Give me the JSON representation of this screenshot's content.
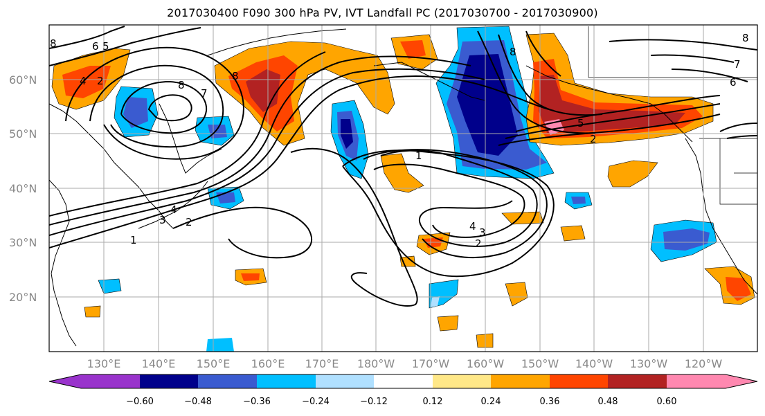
{
  "title": "2017030400 F090 300 hPa PV, IVT Landfall PC (2017030700 - 2017030900)",
  "map": {
    "lat_labels": [
      "60°N",
      "50°N",
      "40°N",
      "30°N",
      "20°N"
    ],
    "lon_labels": [
      "130°E",
      "140°E",
      "150°E",
      "160°E",
      "170°E",
      "180°W",
      "170°W",
      "160°W",
      "150°W",
      "140°W",
      "130°W",
      "120°W"
    ],
    "contour_labels": [
      "1",
      "2",
      "3",
      "4",
      "5",
      "6",
      "7",
      "8"
    ]
  },
  "colorbar": {
    "ticks": [
      "−0.60",
      "−0.48",
      "−0.36",
      "−0.24",
      "−0.12",
      "0.12",
      "0.24",
      "0.36",
      "0.48",
      "0.60"
    ],
    "colors": [
      "#9933cc",
      "#00008b",
      "#3a5bd0",
      "#00bfff",
      "#b0e0ff",
      "#ffffff",
      "#ffe888",
      "#ffa500",
      "#ff4500",
      "#b22222",
      "#ff88b0"
    ]
  },
  "colors": {
    "neg_strong": "#00008b",
    "neg_mid": "#3a5bd0",
    "neg_light": "#00bfff",
    "neg_pale": "#b0e0ff",
    "pos_pale": "#ffe888",
    "pos_light": "#ffa500",
    "pos_mid": "#ff4500",
    "pos_strong": "#b22222",
    "pos_max": "#ff88b0"
  }
}
